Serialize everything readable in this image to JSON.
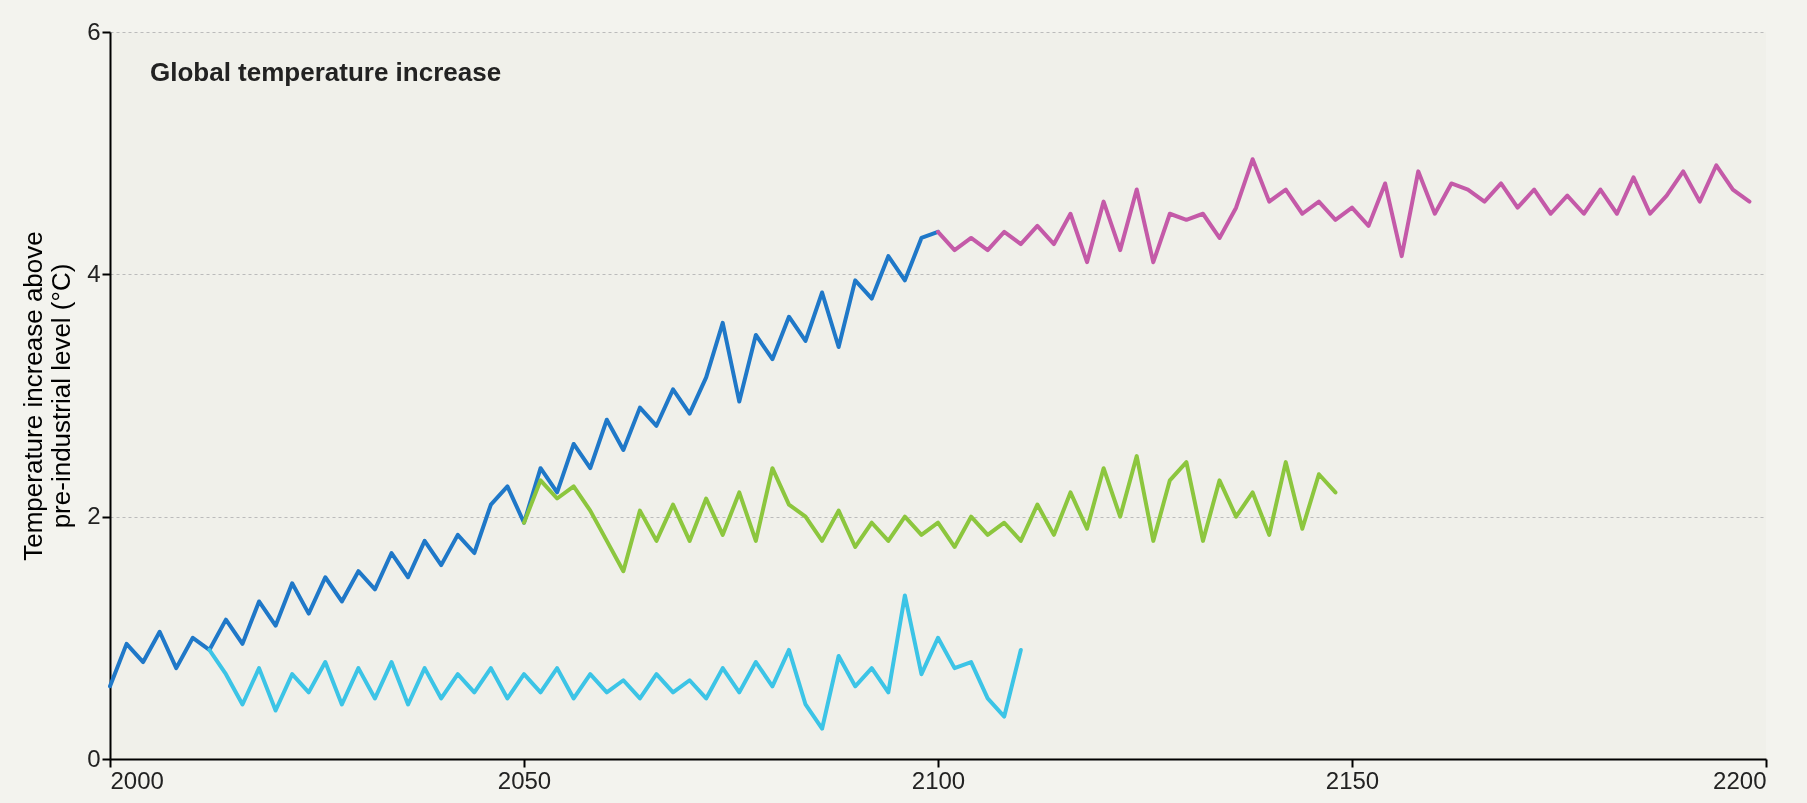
{
  "chart_data": {
    "type": "line",
    "title": "Global temperature increase",
    "ylabel": "Temperature increase above\npre-industrial level (°C)",
    "xlim": [
      2000,
      2200
    ],
    "xticks": [
      2000,
      2050,
      2100,
      2150,
      2200
    ],
    "ylim": [
      0,
      6
    ],
    "yticks": [
      0,
      2,
      4,
      6
    ],
    "grid": "y",
    "legend": false,
    "marker": "none",
    "line_style": "solid",
    "series": [
      {
        "color": "#1f78c8",
        "x": [
          2000,
          2002,
          2004,
          2006,
          2008,
          2010,
          2012,
          2014,
          2016,
          2018,
          2020,
          2022,
          2024,
          2026,
          2028,
          2030,
          2032,
          2034,
          2036,
          2038,
          2040,
          2042,
          2044,
          2046,
          2048,
          2050,
          2052,
          2054,
          2056,
          2058,
          2060,
          2062,
          2064,
          2066,
          2068,
          2070,
          2072,
          2074,
          2076,
          2078,
          2080,
          2082,
          2084,
          2086,
          2088,
          2090,
          2092,
          2094,
          2096,
          2098,
          2100
        ],
        "values": [
          0.6,
          0.95,
          0.8,
          1.05,
          0.75,
          1.0,
          0.9,
          1.15,
          0.95,
          1.3,
          1.1,
          1.45,
          1.2,
          1.5,
          1.3,
          1.55,
          1.4,
          1.7,
          1.5,
          1.8,
          1.6,
          1.85,
          1.7,
          2.1,
          2.25,
          1.95,
          2.4,
          2.2,
          2.6,
          2.4,
          2.8,
          2.55,
          2.9,
          2.75,
          3.05,
          2.85,
          3.15,
          3.6,
          2.95,
          3.5,
          3.3,
          3.65,
          3.45,
          3.85,
          3.4,
          3.95,
          3.8,
          4.15,
          3.95,
          4.3,
          4.35
        ]
      },
      {
        "color": "#3cc4e6",
        "x": [
          2012,
          2014,
          2016,
          2018,
          2020,
          2022,
          2024,
          2026,
          2028,
          2030,
          2032,
          2034,
          2036,
          2038,
          2040,
          2042,
          2044,
          2046,
          2048,
          2050,
          2052,
          2054,
          2056,
          2058,
          2060,
          2062,
          2064,
          2066,
          2068,
          2070,
          2072,
          2074,
          2076,
          2078,
          2080,
          2082,
          2084,
          2086,
          2088,
          2090,
          2092,
          2094,
          2096,
          2098,
          2100,
          2102,
          2104,
          2106,
          2108,
          2110
        ],
        "values": [
          0.9,
          0.7,
          0.45,
          0.75,
          0.4,
          0.7,
          0.55,
          0.8,
          0.45,
          0.75,
          0.5,
          0.8,
          0.45,
          0.75,
          0.5,
          0.7,
          0.55,
          0.75,
          0.5,
          0.7,
          0.55,
          0.75,
          0.5,
          0.7,
          0.55,
          0.65,
          0.5,
          0.7,
          0.55,
          0.65,
          0.5,
          0.75,
          0.55,
          0.8,
          0.6,
          0.9,
          0.45,
          0.25,
          0.85,
          0.6,
          0.75,
          0.55,
          1.35,
          0.7,
          1.0,
          0.75,
          0.8,
          0.5,
          0.35,
          0.9
        ]
      },
      {
        "color": "#8cc63e",
        "x": [
          2050,
          2052,
          2054,
          2056,
          2058,
          2060,
          2062,
          2064,
          2066,
          2068,
          2070,
          2072,
          2074,
          2076,
          2078,
          2080,
          2082,
          2084,
          2086,
          2088,
          2090,
          2092,
          2094,
          2096,
          2098,
          2100,
          2102,
          2104,
          2106,
          2108,
          2110,
          2112,
          2114,
          2116,
          2118,
          2120,
          2122,
          2124,
          2126,
          2128,
          2130,
          2132,
          2134,
          2136,
          2138,
          2140,
          2142,
          2144,
          2146,
          2148
        ],
        "values": [
          1.95,
          2.3,
          2.15,
          2.25,
          2.05,
          1.8,
          1.55,
          2.05,
          1.8,
          2.1,
          1.8,
          2.15,
          1.85,
          2.2,
          1.8,
          2.4,
          2.1,
          2.0,
          1.8,
          2.05,
          1.75,
          1.95,
          1.8,
          2.0,
          1.85,
          1.95,
          1.75,
          2.0,
          1.85,
          1.95,
          1.8,
          2.1,
          1.85,
          2.2,
          1.9,
          2.4,
          2.0,
          2.5,
          1.8,
          2.3,
          2.45,
          1.8,
          2.3,
          2.0,
          2.2,
          1.85,
          2.45,
          1.9,
          2.35,
          2.2
        ]
      },
      {
        "color": "#c45aa8",
        "x": [
          2100,
          2102,
          2104,
          2106,
          2108,
          2110,
          2112,
          2114,
          2116,
          2118,
          2120,
          2122,
          2124,
          2126,
          2128,
          2130,
          2132,
          2134,
          2136,
          2138,
          2140,
          2142,
          2144,
          2146,
          2148,
          2150,
          2152,
          2154,
          2156,
          2158,
          2160,
          2162,
          2164,
          2166,
          2168,
          2170,
          2172,
          2174,
          2176,
          2178,
          2180,
          2182,
          2184,
          2186,
          2188,
          2190,
          2192,
          2194,
          2196,
          2198
        ],
        "values": [
          4.35,
          4.2,
          4.3,
          4.2,
          4.35,
          4.25,
          4.4,
          4.25,
          4.5,
          4.1,
          4.6,
          4.2,
          4.7,
          4.1,
          4.5,
          4.45,
          4.5,
          4.3,
          4.55,
          4.95,
          4.6,
          4.7,
          4.5,
          4.6,
          4.45,
          4.55,
          4.4,
          4.75,
          4.15,
          4.85,
          4.5,
          4.75,
          4.7,
          4.6,
          4.75,
          4.55,
          4.7,
          4.5,
          4.65,
          4.5,
          4.7,
          4.5,
          4.8,
          4.5,
          4.65,
          4.85,
          4.6,
          4.9,
          4.7,
          4.6
        ]
      }
    ]
  }
}
